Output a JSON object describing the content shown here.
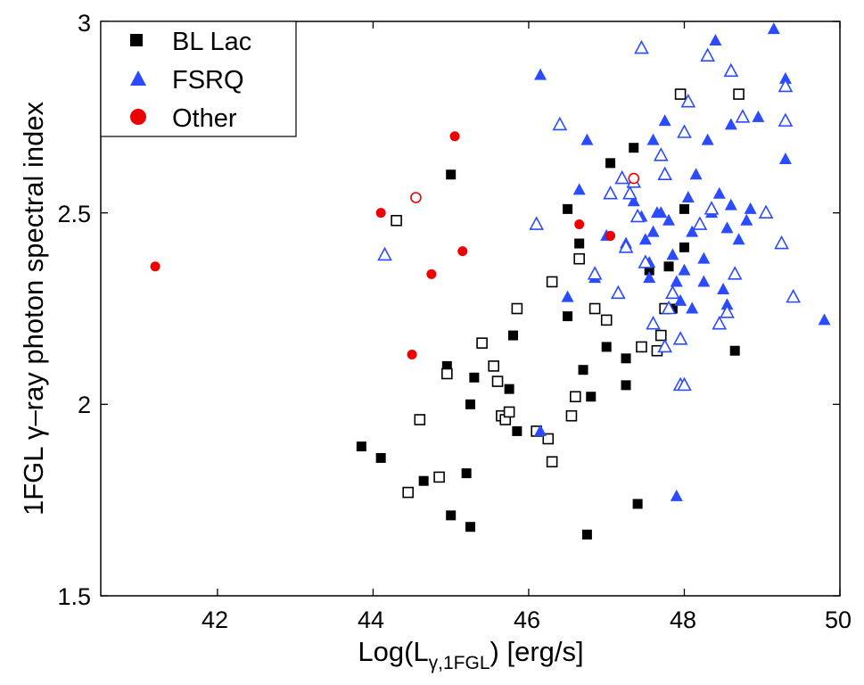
{
  "chart_data": {
    "type": "scatter",
    "xlabel": {
      "main": "Log(L",
      "sub": "γ,1FGL",
      "tail": ") [erg/s]"
    },
    "ylabel": "1FGL γ–ray photon spectral index",
    "xlim": [
      40.5,
      50
    ],
    "ylim": [
      1.5,
      3
    ],
    "xticks": [
      42,
      44,
      46,
      48,
      50
    ],
    "yticks": [
      1.5,
      2,
      2.5,
      3
    ],
    "xtick_labels": [
      "42",
      "44",
      "46",
      "48",
      "50"
    ],
    "ytick_labels": [
      "1.5",
      "2",
      "2.5",
      "3"
    ],
    "grid": false,
    "legend": {
      "position": "top-left",
      "entries": [
        {
          "label": "BL Lac",
          "marker": "square",
          "color": "#000000"
        },
        {
          "label": "FSRQ",
          "marker": "triangle",
          "color": "#2a4bff"
        },
        {
          "label": "Other",
          "marker": "circle",
          "color": "#ee0000"
        }
      ]
    },
    "series": [
      {
        "name": "BL Lac",
        "marker": "square",
        "color": "#000000",
        "filled": true,
        "points": [
          [
            43.85,
            1.89
          ],
          [
            44.1,
            1.86
          ],
          [
            44.65,
            1.8
          ],
          [
            44.95,
            2.1
          ],
          [
            45.0,
            2.6
          ],
          [
            45.0,
            1.71
          ],
          [
            45.2,
            1.82
          ],
          [
            45.25,
            2.0
          ],
          [
            45.3,
            2.07
          ],
          [
            45.25,
            1.68
          ],
          [
            45.75,
            2.04
          ],
          [
            45.8,
            2.18
          ],
          [
            45.85,
            1.93
          ],
          [
            46.5,
            2.23
          ],
          [
            46.5,
            2.51
          ],
          [
            46.65,
            2.42
          ],
          [
            46.7,
            2.09
          ],
          [
            46.75,
            1.66
          ],
          [
            46.8,
            2.02
          ],
          [
            47.0,
            2.15
          ],
          [
            47.05,
            2.63
          ],
          [
            47.25,
            2.12
          ],
          [
            47.25,
            2.05
          ],
          [
            47.35,
            2.67
          ],
          [
            47.4,
            1.74
          ],
          [
            47.55,
            2.35
          ],
          [
            47.8,
            2.36
          ],
          [
            47.85,
            2.25
          ],
          [
            48.0,
            2.41
          ],
          [
            48.0,
            2.51
          ],
          [
            48.65,
            2.14
          ]
        ]
      },
      {
        "name": "BL Lac",
        "marker": "square",
        "color": "#000000",
        "filled": false,
        "points": [
          [
            44.3,
            2.48
          ],
          [
            44.45,
            1.77
          ],
          [
            44.6,
            1.96
          ],
          [
            44.85,
            1.81
          ],
          [
            44.95,
            2.08
          ],
          [
            45.4,
            2.16
          ],
          [
            45.55,
            2.1
          ],
          [
            45.6,
            2.06
          ],
          [
            45.65,
            1.97
          ],
          [
            45.7,
            1.96
          ],
          [
            45.75,
            1.98
          ],
          [
            45.85,
            2.25
          ],
          [
            46.1,
            1.93
          ],
          [
            46.25,
            1.91
          ],
          [
            46.3,
            1.85
          ],
          [
            46.3,
            2.32
          ],
          [
            46.55,
            1.97
          ],
          [
            46.6,
            2.02
          ],
          [
            46.65,
            2.38
          ],
          [
            46.85,
            2.25
          ],
          [
            47.0,
            2.22
          ],
          [
            47.45,
            2.15
          ],
          [
            47.65,
            2.14
          ],
          [
            47.7,
            2.18
          ],
          [
            47.75,
            2.25
          ],
          [
            47.95,
            2.81
          ],
          [
            48.7,
            2.81
          ]
        ]
      },
      {
        "name": "FSRQ",
        "marker": "triangle",
        "color": "#2a4bff",
        "filled": true,
        "points": [
          [
            46.15,
            1.93
          ],
          [
            46.15,
            2.86
          ],
          [
            46.5,
            2.28
          ],
          [
            46.65,
            2.56
          ],
          [
            46.75,
            2.69
          ],
          [
            46.85,
            2.33
          ],
          [
            47.0,
            2.44
          ],
          [
            47.25,
            2.42
          ],
          [
            47.35,
            2.53
          ],
          [
            47.45,
            2.49
          ],
          [
            47.5,
            2.43
          ],
          [
            47.55,
            2.37
          ],
          [
            47.6,
            2.45
          ],
          [
            47.6,
            2.69
          ],
          [
            47.65,
            2.5
          ],
          [
            47.75,
            2.74
          ],
          [
            47.8,
            2.48
          ],
          [
            47.85,
            2.39
          ],
          [
            47.9,
            2.32
          ],
          [
            47.95,
            2.27
          ],
          [
            48.05,
            2.54
          ],
          [
            48.1,
            2.45
          ],
          [
            48.15,
            2.6
          ],
          [
            48.2,
            2.47
          ],
          [
            48.25,
            2.38
          ],
          [
            48.3,
            2.69
          ],
          [
            48.35,
            2.5
          ],
          [
            48.4,
            2.95
          ],
          [
            48.45,
            2.55
          ],
          [
            48.55,
            2.26
          ],
          [
            48.6,
            2.52
          ],
          [
            48.7,
            2.43
          ],
          [
            48.8,
            2.48
          ],
          [
            48.85,
            2.51
          ],
          [
            48.95,
            2.75
          ],
          [
            49.15,
            2.98
          ],
          [
            49.3,
            2.85
          ],
          [
            49.3,
            2.64
          ],
          [
            49.8,
            2.22
          ],
          [
            47.9,
            1.76
          ],
          [
            48.0,
            2.35
          ],
          [
            48.1,
            2.25
          ],
          [
            48.6,
            2.73
          ],
          [
            48.5,
            2.3
          ],
          [
            47.7,
            2.5
          ],
          [
            47.55,
            2.33
          ],
          [
            48.25,
            2.32
          ],
          [
            48.55,
            2.46
          ]
        ]
      },
      {
        "name": "FSRQ",
        "marker": "triangle",
        "color": "#2a4bff",
        "filled": false,
        "points": [
          [
            44.15,
            2.39
          ],
          [
            46.1,
            2.47
          ],
          [
            46.4,
            2.73
          ],
          [
            46.85,
            2.34
          ],
          [
            47.05,
            2.55
          ],
          [
            47.15,
            2.29
          ],
          [
            47.2,
            2.59
          ],
          [
            47.25,
            2.41
          ],
          [
            47.3,
            2.55
          ],
          [
            47.35,
            2.58
          ],
          [
            47.4,
            2.49
          ],
          [
            47.45,
            2.93
          ],
          [
            47.5,
            2.37
          ],
          [
            47.6,
            2.21
          ],
          [
            47.7,
            2.65
          ],
          [
            47.75,
            2.6
          ],
          [
            47.8,
            2.25
          ],
          [
            47.85,
            2.29
          ],
          [
            47.95,
            2.17
          ],
          [
            47.95,
            2.05
          ],
          [
            48.0,
            2.05
          ],
          [
            48.05,
            2.79
          ],
          [
            48.2,
            2.47
          ],
          [
            48.35,
            2.51
          ],
          [
            48.45,
            2.21
          ],
          [
            48.55,
            2.24
          ],
          [
            48.65,
            2.34
          ],
          [
            48.3,
            2.91
          ],
          [
            48.75,
            2.75
          ],
          [
            49.05,
            2.5
          ],
          [
            49.25,
            2.42
          ],
          [
            49.3,
            2.83
          ],
          [
            49.3,
            2.74
          ],
          [
            49.4,
            2.28
          ],
          [
            48.6,
            2.87
          ],
          [
            47.75,
            2.15
          ],
          [
            48.0,
            2.71
          ]
        ]
      },
      {
        "name": "Other",
        "marker": "circle",
        "color": "#ee0000",
        "filled": true,
        "points": [
          [
            41.2,
            2.36
          ],
          [
            44.1,
            2.5
          ],
          [
            44.5,
            2.13
          ],
          [
            44.75,
            2.34
          ],
          [
            45.05,
            2.7
          ],
          [
            45.15,
            2.4
          ],
          [
            46.65,
            2.47
          ],
          [
            47.05,
            2.44
          ]
        ]
      },
      {
        "name": "Other",
        "marker": "circle",
        "color": "#ee0000",
        "filled": false,
        "points": [
          [
            44.55,
            2.54
          ],
          [
            47.35,
            2.59
          ]
        ]
      }
    ]
  }
}
